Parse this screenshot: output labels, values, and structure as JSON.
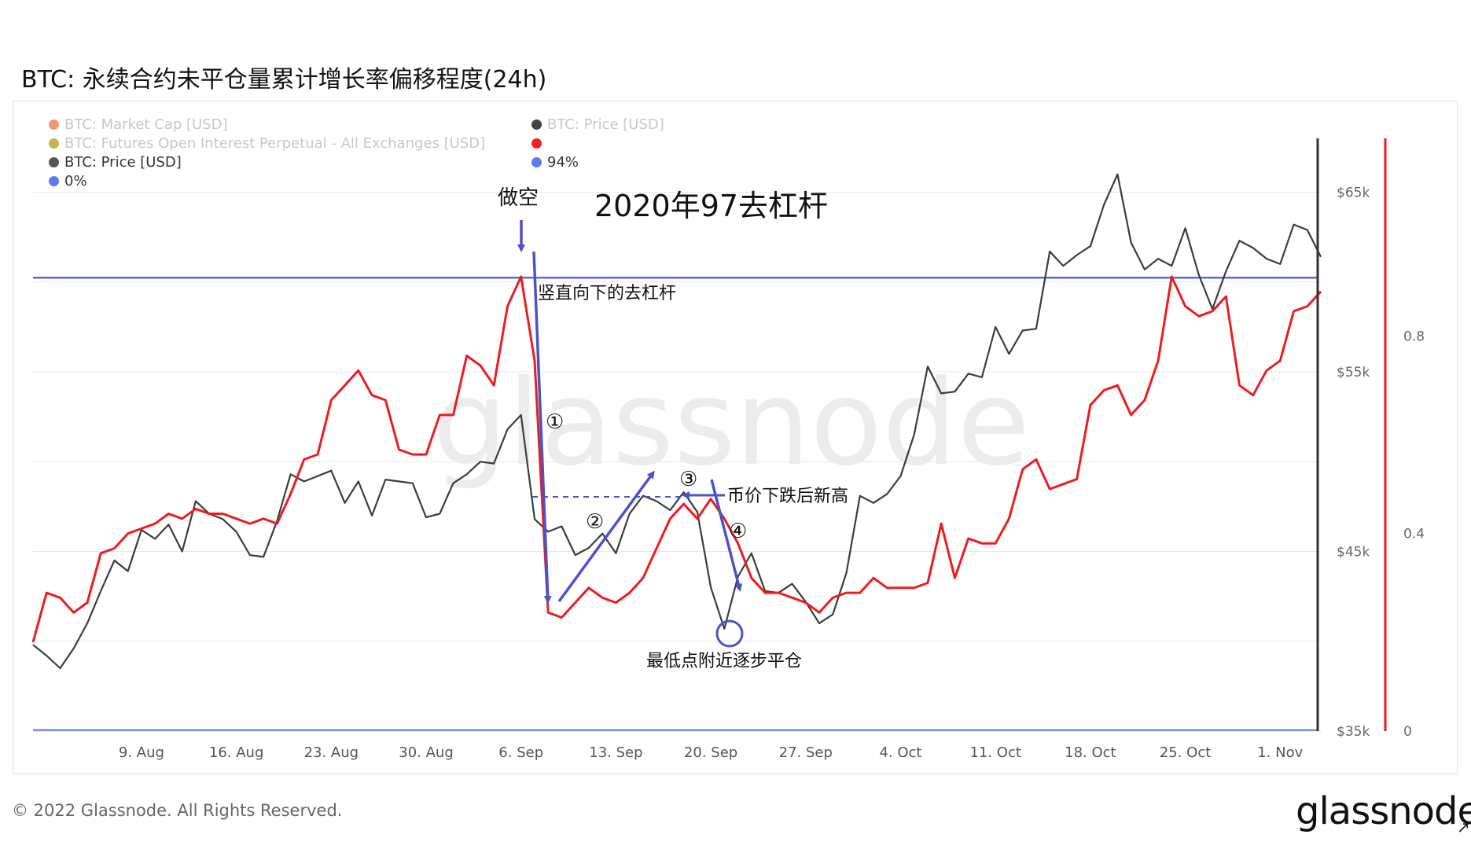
{
  "title": "BTC: 永续合约未平仓量累计增长率偏移程度(24h)",
  "legend": {
    "left": [
      {
        "label": "BTC: Market Cap [USD]",
        "color": "#e8865f",
        "faded": true
      },
      {
        "label": "BTC: Futures Open Interest Perpetual - All Exchanges [USD]",
        "color": "#b5a93a",
        "faded": true
      },
      {
        "label": "BTC: Price [USD]",
        "color": "#555555",
        "faded": false
      },
      {
        "label": "0%",
        "color": "#5b7bf0",
        "faded": false
      }
    ],
    "right": [
      {
        "label": "BTC: Price [USD]",
        "color": "#222222",
        "faded": true
      },
      {
        "label": "",
        "color": "#ee2222",
        "faded": false
      },
      {
        "label": "94%",
        "color": "#5b7bf0",
        "faded": false
      }
    ]
  },
  "watermark": "glassnode",
  "annotations": {
    "header": "2020年97去杠杆",
    "short": "做空",
    "vertical_delever": "竖直向下的去杠杆",
    "new_high": "币价下跌后新高",
    "lowest": "最低点附近逐步平仓",
    "step1": "①",
    "step2": "②",
    "step3": "③",
    "step4": "④"
  },
  "footer": "© 2022 Glassnode. All Rights Reserved.",
  "brand": "glassnode",
  "colors": {
    "price": "#3c3c3c",
    "indicator": "#ee1c1c",
    "reference": "#4a6ee8",
    "arrow": "#4a52cc",
    "grid": "#e8e8e8"
  },
  "chart_data": {
    "type": "line",
    "x_ticks": [
      "9. Aug",
      "16. Aug",
      "23. Aug",
      "30. Aug",
      "6. Sep",
      "13. Sep",
      "20. Sep",
      "27. Sep",
      "4. Oct",
      "11. Oct",
      "18. Oct",
      "25. Oct",
      "1. Nov"
    ],
    "x_range": [
      "2021-08-01",
      "2021-11-04"
    ],
    "y_left": {
      "ticks": [
        "$35k",
        "$45k",
        "$55k",
        "$65k"
      ],
      "values": [
        35000,
        45000,
        55000,
        65000
      ],
      "range": [
        35000,
        68000
      ]
    },
    "y_right": {
      "ticks": [
        "0",
        "0.4",
        "0.8"
      ],
      "values": [
        0,
        0.4,
        0.8
      ],
      "range": [
        0,
        1.2
      ]
    },
    "reference_lines": {
      "y94": 0.918,
      "y0": 0
    },
    "series": [
      {
        "name": "BTC: Price [USD]",
        "axis": "left",
        "points": [
          [
            "2021-08-01",
            39800
          ],
          [
            "2021-08-02",
            39200
          ],
          [
            "2021-08-03",
            38500
          ],
          [
            "2021-08-04",
            39600
          ],
          [
            "2021-08-05",
            41000
          ],
          [
            "2021-08-06",
            42800
          ],
          [
            "2021-08-07",
            44500
          ],
          [
            "2021-08-08",
            43900
          ],
          [
            "2021-08-09",
            46200
          ],
          [
            "2021-08-10",
            45700
          ],
          [
            "2021-08-11",
            46500
          ],
          [
            "2021-08-12",
            45000
          ],
          [
            "2021-08-13",
            47800
          ],
          [
            "2021-08-14",
            47100
          ],
          [
            "2021-08-15",
            46800
          ],
          [
            "2021-08-16",
            46100
          ],
          [
            "2021-08-17",
            44800
          ],
          [
            "2021-08-18",
            44700
          ],
          [
            "2021-08-19",
            46700
          ],
          [
            "2021-08-20",
            49300
          ],
          [
            "2021-08-21",
            48900
          ],
          [
            "2021-08-22",
            49200
          ],
          [
            "2021-08-23",
            49500
          ],
          [
            "2021-08-24",
            47700
          ],
          [
            "2021-08-25",
            48900
          ],
          [
            "2021-08-26",
            47000
          ],
          [
            "2021-08-27",
            49000
          ],
          [
            "2021-08-28",
            48900
          ],
          [
            "2021-08-29",
            48800
          ],
          [
            "2021-08-30",
            46900
          ],
          [
            "2021-08-31",
            47100
          ],
          [
            "2021-09-01",
            48800
          ],
          [
            "2021-09-02",
            49300
          ],
          [
            "2021-09-03",
            50000
          ],
          [
            "2021-09-04",
            49900
          ],
          [
            "2021-09-05",
            51800
          ],
          [
            "2021-09-06",
            52600
          ],
          [
            "2021-09-07",
            46800
          ],
          [
            "2021-09-08",
            46100
          ],
          [
            "2021-09-09",
            46400
          ],
          [
            "2021-09-10",
            44800
          ],
          [
            "2021-09-11",
            45200
          ],
          [
            "2021-09-12",
            46000
          ],
          [
            "2021-09-13",
            44900
          ],
          [
            "2021-09-14",
            47100
          ],
          [
            "2021-09-15",
            48100
          ],
          [
            "2021-09-16",
            47800
          ],
          [
            "2021-09-17",
            47300
          ],
          [
            "2021-09-18",
            48300
          ],
          [
            "2021-09-19",
            47200
          ],
          [
            "2021-09-20",
            43000
          ],
          [
            "2021-09-21",
            40700
          ],
          [
            "2021-09-22",
            43600
          ],
          [
            "2021-09-23",
            44900
          ],
          [
            "2021-09-24",
            42800
          ],
          [
            "2021-09-25",
            42700
          ],
          [
            "2021-09-26",
            43200
          ],
          [
            "2021-09-27",
            42200
          ],
          [
            "2021-09-28",
            41000
          ],
          [
            "2021-09-29",
            41500
          ],
          [
            "2021-09-30",
            43800
          ],
          [
            "2021-10-01",
            48100
          ],
          [
            "2021-10-02",
            47700
          ],
          [
            "2021-10-03",
            48200
          ],
          [
            "2021-10-04",
            49200
          ],
          [
            "2021-10-05",
            51500
          ],
          [
            "2021-10-06",
            55300
          ],
          [
            "2021-10-07",
            53800
          ],
          [
            "2021-10-08",
            53900
          ],
          [
            "2021-10-09",
            54900
          ],
          [
            "2021-10-10",
            54700
          ],
          [
            "2021-10-11",
            57500
          ],
          [
            "2021-10-12",
            56000
          ],
          [
            "2021-10-13",
            57300
          ],
          [
            "2021-10-14",
            57400
          ],
          [
            "2021-10-15",
            61700
          ],
          [
            "2021-10-16",
            60900
          ],
          [
            "2021-10-17",
            61500
          ],
          [
            "2021-10-18",
            62000
          ],
          [
            "2021-10-19",
            64300
          ],
          [
            "2021-10-20",
            66000
          ],
          [
            "2021-10-21",
            62200
          ],
          [
            "2021-10-22",
            60700
          ],
          [
            "2021-10-23",
            61300
          ],
          [
            "2021-10-24",
            60900
          ],
          [
            "2021-10-25",
            63000
          ],
          [
            "2021-10-26",
            60400
          ],
          [
            "2021-10-27",
            58500
          ],
          [
            "2021-10-28",
            60600
          ],
          [
            "2021-10-29",
            62300
          ],
          [
            "2021-10-30",
            61900
          ],
          [
            "2021-10-31",
            61300
          ],
          [
            "2021-11-01",
            61000
          ],
          [
            "2021-11-02",
            63200
          ],
          [
            "2021-11-03",
            62900
          ],
          [
            "2021-11-04",
            61400
          ]
        ]
      },
      {
        "name": "",
        "axis": "right",
        "points": [
          [
            "2021-08-01",
            0.18
          ],
          [
            "2021-08-02",
            0.28
          ],
          [
            "2021-08-03",
            0.27
          ],
          [
            "2021-08-04",
            0.24
          ],
          [
            "2021-08-05",
            0.26
          ],
          [
            "2021-08-06",
            0.36
          ],
          [
            "2021-08-07",
            0.37
          ],
          [
            "2021-08-08",
            0.4
          ],
          [
            "2021-08-09",
            0.41
          ],
          [
            "2021-08-10",
            0.42
          ],
          [
            "2021-08-11",
            0.44
          ],
          [
            "2021-08-12",
            0.43
          ],
          [
            "2021-08-13",
            0.45
          ],
          [
            "2021-08-14",
            0.44
          ],
          [
            "2021-08-15",
            0.44
          ],
          [
            "2021-08-16",
            0.43
          ],
          [
            "2021-08-17",
            0.42
          ],
          [
            "2021-08-18",
            0.43
          ],
          [
            "2021-08-19",
            0.42
          ],
          [
            "2021-08-20",
            0.48
          ],
          [
            "2021-08-21",
            0.55
          ],
          [
            "2021-08-22",
            0.56
          ],
          [
            "2021-08-23",
            0.67
          ],
          [
            "2021-08-24",
            0.7
          ],
          [
            "2021-08-25",
            0.73
          ],
          [
            "2021-08-26",
            0.68
          ],
          [
            "2021-08-27",
            0.67
          ],
          [
            "2021-08-28",
            0.57
          ],
          [
            "2021-08-29",
            0.56
          ],
          [
            "2021-08-30",
            0.56
          ],
          [
            "2021-08-31",
            0.64
          ],
          [
            "2021-09-01",
            0.64
          ],
          [
            "2021-09-02",
            0.76
          ],
          [
            "2021-09-03",
            0.74
          ],
          [
            "2021-09-04",
            0.7
          ],
          [
            "2021-09-05",
            0.86
          ],
          [
            "2021-09-06",
            0.92
          ],
          [
            "2021-09-07",
            0.75
          ],
          [
            "2021-09-08",
            0.24
          ],
          [
            "2021-09-09",
            0.23
          ],
          [
            "2021-09-10",
            0.26
          ],
          [
            "2021-09-11",
            0.29
          ],
          [
            "2021-09-12",
            0.27
          ],
          [
            "2021-09-13",
            0.26
          ],
          [
            "2021-09-14",
            0.28
          ],
          [
            "2021-09-15",
            0.31
          ],
          [
            "2021-09-16",
            0.37
          ],
          [
            "2021-09-17",
            0.43
          ],
          [
            "2021-09-18",
            0.46
          ],
          [
            "2021-09-19",
            0.43
          ],
          [
            "2021-09-20",
            0.47
          ],
          [
            "2021-09-21",
            0.43
          ],
          [
            "2021-09-22",
            0.38
          ],
          [
            "2021-09-23",
            0.31
          ],
          [
            "2021-09-24",
            0.28
          ],
          [
            "2021-09-25",
            0.28
          ],
          [
            "2021-09-26",
            0.27
          ],
          [
            "2021-09-27",
            0.26
          ],
          [
            "2021-09-28",
            0.24
          ],
          [
            "2021-09-29",
            0.27
          ],
          [
            "2021-09-30",
            0.28
          ],
          [
            "2021-10-01",
            0.28
          ],
          [
            "2021-10-02",
            0.31
          ],
          [
            "2021-10-03",
            0.29
          ],
          [
            "2021-10-04",
            0.29
          ],
          [
            "2021-10-05",
            0.29
          ],
          [
            "2021-10-06",
            0.3
          ],
          [
            "2021-10-07",
            0.42
          ],
          [
            "2021-10-08",
            0.31
          ],
          [
            "2021-10-09",
            0.39
          ],
          [
            "2021-10-10",
            0.38
          ],
          [
            "2021-10-11",
            0.38
          ],
          [
            "2021-10-12",
            0.43
          ],
          [
            "2021-10-13",
            0.53
          ],
          [
            "2021-10-14",
            0.55
          ],
          [
            "2021-10-15",
            0.49
          ],
          [
            "2021-10-16",
            0.5
          ],
          [
            "2021-10-17",
            0.51
          ],
          [
            "2021-10-18",
            0.66
          ],
          [
            "2021-10-19",
            0.69
          ],
          [
            "2021-10-20",
            0.7
          ],
          [
            "2021-10-21",
            0.64
          ],
          [
            "2021-10-22",
            0.67
          ],
          [
            "2021-10-23",
            0.75
          ],
          [
            "2021-10-24",
            0.92
          ],
          [
            "2021-10-25",
            0.86
          ],
          [
            "2021-10-26",
            0.84
          ],
          [
            "2021-10-27",
            0.85
          ],
          [
            "2021-10-28",
            0.88
          ],
          [
            "2021-10-29",
            0.7
          ],
          [
            "2021-10-30",
            0.68
          ],
          [
            "2021-10-31",
            0.73
          ],
          [
            "2021-11-01",
            0.75
          ],
          [
            "2021-11-02",
            0.85
          ],
          [
            "2021-11-03",
            0.86
          ],
          [
            "2021-11-04",
            0.89
          ]
        ]
      }
    ]
  }
}
